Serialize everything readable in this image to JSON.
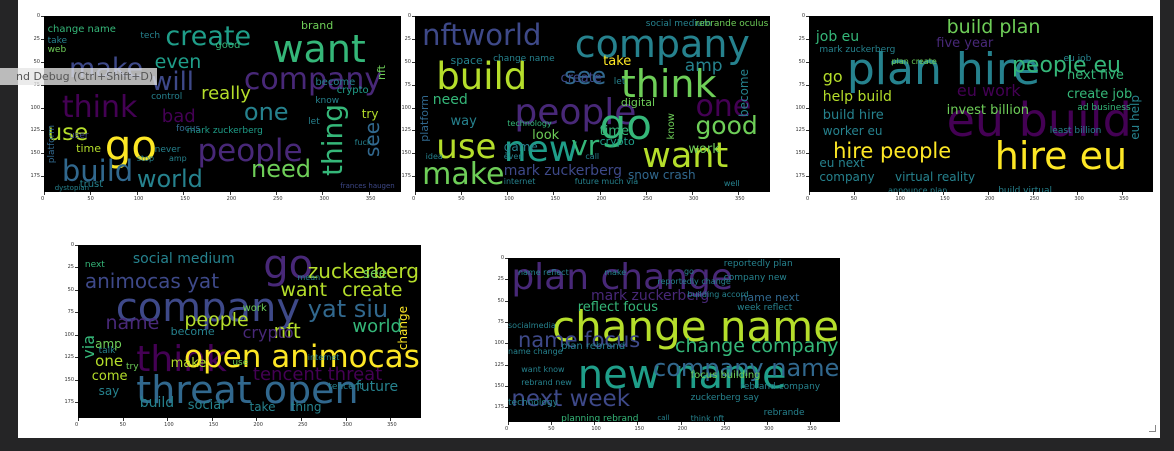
{
  "tooltip": {
    "text": "nd Debug (Ctrl+Shift+D)"
  },
  "palette": {
    "background": "#252526",
    "panel": "#ffffff",
    "canvas": "#000000"
  },
  "wordclouds": [
    {
      "id": "wordcloud-1",
      "x_ticks": [
        "0",
        "50",
        "100",
        "150",
        "200",
        "250",
        "300",
        "350"
      ],
      "y_ticks": [
        "0",
        "25",
        "50",
        "75",
        "100",
        "125",
        "150",
        "175"
      ],
      "words": [
        {
          "text": "go",
          "color": "#fde725"
        },
        {
          "text": "want",
          "color": "#35b779"
        },
        {
          "text": "company",
          "color": "#482878"
        },
        {
          "text": "create",
          "color": "#1f9e89"
        },
        {
          "text": "make",
          "color": "#3e4989"
        },
        {
          "text": "think",
          "color": "#440154"
        },
        {
          "text": "people",
          "color": "#482878"
        },
        {
          "text": "build",
          "color": "#31688e"
        },
        {
          "text": "world",
          "color": "#26828e"
        },
        {
          "text": "need",
          "color": "#6ece58"
        },
        {
          "text": "thing",
          "color": "#35b779"
        },
        {
          "text": "use",
          "color": "#b5de2b"
        },
        {
          "text": "one",
          "color": "#26828e"
        },
        {
          "text": "will",
          "color": "#3e4989"
        },
        {
          "text": "even",
          "color": "#1f9e89"
        },
        {
          "text": "see",
          "color": "#31688e"
        },
        {
          "text": "really",
          "color": "#b5de2b"
        },
        {
          "text": "bad",
          "color": "#440154"
        },
        {
          "text": "change name",
          "color": "#35b779"
        },
        {
          "text": "mark zuckerberg",
          "color": "#1f9e89"
        },
        {
          "text": "brand",
          "color": "#6ece58"
        },
        {
          "text": "tech",
          "color": "#26828e"
        },
        {
          "text": "good",
          "color": "#35b779"
        },
        {
          "text": "become",
          "color": "#26828e"
        },
        {
          "text": "crypto",
          "color": "#1f9e89"
        },
        {
          "text": "know",
          "color": "#26828e"
        },
        {
          "text": "focus",
          "color": "#31688e"
        },
        {
          "text": "let",
          "color": "#26828e"
        },
        {
          "text": "try",
          "color": "#b5de2b"
        },
        {
          "text": "time",
          "color": "#b5de2b"
        },
        {
          "text": "never",
          "color": "#26828e"
        },
        {
          "text": "trust",
          "color": "#26828e"
        },
        {
          "text": "platform",
          "color": "#31688e"
        },
        {
          "text": "web",
          "color": "#6ece58"
        },
        {
          "text": "take",
          "color": "#26828e"
        },
        {
          "text": "user",
          "color": "#3e4989"
        },
        {
          "text": "stop",
          "color": "#26828e"
        },
        {
          "text": "dystopian",
          "color": "#26828e"
        },
        {
          "text": "control",
          "color": "#26828e"
        },
        {
          "text": "nft",
          "color": "#6ece58"
        },
        {
          "text": "amp",
          "color": "#26828e"
        },
        {
          "text": "fuck",
          "color": "#26828e"
        },
        {
          "text": "frances haugen",
          "color": "#3e4989"
        }
      ]
    },
    {
      "id": "wordcloud-2",
      "x_ticks": [
        "0",
        "50",
        "100",
        "150",
        "200",
        "250",
        "300",
        "350"
      ],
      "y_ticks": [
        "0",
        "25",
        "50",
        "75",
        "100",
        "125",
        "150",
        "175"
      ],
      "words": [
        {
          "text": "company",
          "color": "#26828e"
        },
        {
          "text": "nftworld",
          "color": "#3e4989"
        },
        {
          "text": "build",
          "color": "#b5de2b"
        },
        {
          "text": "think",
          "color": "#6ece58"
        },
        {
          "text": "people",
          "color": "#482878"
        },
        {
          "text": "see",
          "color": "#31688e"
        },
        {
          "text": "go",
          "color": "#35b779"
        },
        {
          "text": "new",
          "color": "#1f9e89"
        },
        {
          "text": "use",
          "color": "#b5de2b"
        },
        {
          "text": "make",
          "color": "#6ece58"
        },
        {
          "text": "vr",
          "color": "#35b779"
        },
        {
          "text": "want",
          "color": "#b5de2b"
        },
        {
          "text": "good",
          "color": "#6ece58"
        },
        {
          "text": "one",
          "color": "#440154"
        },
        {
          "text": "amp",
          "color": "#26828e"
        },
        {
          "text": "take",
          "color": "#fde725"
        },
        {
          "text": "create",
          "color": "#3e4989"
        },
        {
          "text": "space",
          "color": "#26828e"
        },
        {
          "text": "change name",
          "color": "#26828e"
        },
        {
          "text": "social medium",
          "color": "#26828e"
        },
        {
          "text": "rebrande oculus",
          "color": "#6ece58"
        },
        {
          "text": "platform",
          "color": "#31688e"
        },
        {
          "text": "need",
          "color": "#35b779"
        },
        {
          "text": "technology",
          "color": "#35b779"
        },
        {
          "text": "game",
          "color": "#26828e"
        },
        {
          "text": "look",
          "color": "#6ece58"
        },
        {
          "text": "time",
          "color": "#35b779"
        },
        {
          "text": "crypto",
          "color": "#1f9e89"
        },
        {
          "text": "work",
          "color": "#6ece58"
        },
        {
          "text": "mark zuckerberg",
          "color": "#3e4989"
        },
        {
          "text": "snow crash",
          "color": "#31688e"
        },
        {
          "text": "internet",
          "color": "#26828e"
        },
        {
          "text": "future much via",
          "color": "#26828e"
        },
        {
          "text": "way",
          "color": "#26828e"
        },
        {
          "text": "digital",
          "color": "#6ece58"
        },
        {
          "text": "become",
          "color": "#26828e"
        },
        {
          "text": "know",
          "color": "#6ece58"
        },
        {
          "text": "let",
          "color": "#26828e"
        },
        {
          "text": "well",
          "color": "#26828e"
        },
        {
          "text": "even",
          "color": "#26828e"
        },
        {
          "text": "call",
          "color": "#26828e"
        },
        {
          "text": "idea",
          "color": "#26828e"
        }
      ]
    },
    {
      "id": "wordcloud-3",
      "x_ticks": [
        "0",
        "50",
        "100",
        "150",
        "200",
        "250",
        "300",
        "350"
      ],
      "y_ticks": [
        "0",
        "25",
        "50",
        "75",
        "100",
        "125",
        "150",
        "175"
      ],
      "words": [
        {
          "text": "plan hire",
          "color": "#26828e"
        },
        {
          "text": "eu build",
          "color": "#440154"
        },
        {
          "text": "hire eu",
          "color": "#fde725"
        },
        {
          "text": "hire people",
          "color": "#fde725"
        },
        {
          "text": "people eu",
          "color": "#35b779"
        },
        {
          "text": "job eu",
          "color": "#35b779"
        },
        {
          "text": "build plan",
          "color": "#6ece58"
        },
        {
          "text": "help build",
          "color": "#b5de2b"
        },
        {
          "text": "build hire",
          "color": "#26828e"
        },
        {
          "text": "worker eu",
          "color": "#26828e"
        },
        {
          "text": "eu work",
          "color": "#440154"
        },
        {
          "text": "five year",
          "color": "#482878"
        },
        {
          "text": "next five",
          "color": "#35b779"
        },
        {
          "text": "invest billion",
          "color": "#6ece58"
        },
        {
          "text": "create job",
          "color": "#35b779"
        },
        {
          "text": "mark zuckerberg",
          "color": "#26828e"
        },
        {
          "text": "plan create",
          "color": "#6ece58"
        },
        {
          "text": "virtual reality",
          "color": "#26828e"
        },
        {
          "text": "company",
          "color": "#26828e"
        },
        {
          "text": "eu next",
          "color": "#26828e"
        },
        {
          "text": "go",
          "color": "#b5de2b"
        },
        {
          "text": "eu help",
          "color": "#26828e"
        },
        {
          "text": "ad business",
          "color": "#35b779"
        },
        {
          "text": "announce plan",
          "color": "#26828e"
        },
        {
          "text": "build virtual",
          "color": "#26828e"
        },
        {
          "text": "eu job",
          "color": "#26828e"
        },
        {
          "text": "least billion",
          "color": "#26828e"
        }
      ]
    },
    {
      "id": "wordcloud-4",
      "x_ticks": [
        "0",
        "50",
        "100",
        "150",
        "200",
        "250",
        "300",
        "350"
      ],
      "y_ticks": [
        "0",
        "25",
        "50",
        "75",
        "100",
        "125",
        "150",
        "175"
      ],
      "words": [
        {
          "text": "company",
          "color": "#3e4989"
        },
        {
          "text": "go",
          "color": "#482878"
        },
        {
          "text": "think",
          "color": "#440154"
        },
        {
          "text": "threat open",
          "color": "#31688e"
        },
        {
          "text": "open animocas",
          "color": "#fde725"
        },
        {
          "text": "animocas yat",
          "color": "#3e4989"
        },
        {
          "text": "zuckerberg",
          "color": "#b5de2b"
        },
        {
          "text": "yat siu",
          "color": "#31688e"
        },
        {
          "text": "want",
          "color": "#b5de2b"
        },
        {
          "text": "create",
          "color": "#b5de2b"
        },
        {
          "text": "see",
          "color": "#6ece58"
        },
        {
          "text": "people",
          "color": "#b5de2b"
        },
        {
          "text": "nft",
          "color": "#b5de2b"
        },
        {
          "text": "world",
          "color": "#35b779"
        },
        {
          "text": "tencent threat",
          "color": "#440154"
        },
        {
          "text": "social medium",
          "color": "#26828e"
        },
        {
          "text": "name",
          "color": "#482878"
        },
        {
          "text": "crypto",
          "color": "#482878"
        },
        {
          "text": "become",
          "color": "#26828e"
        },
        {
          "text": "make",
          "color": "#b5de2b"
        },
        {
          "text": "come",
          "color": "#b5de2b"
        },
        {
          "text": "one",
          "color": "#b5de2b"
        },
        {
          "text": "build",
          "color": "#26828e"
        },
        {
          "text": "social",
          "color": "#26828e"
        },
        {
          "text": "take",
          "color": "#26828e"
        },
        {
          "text": "thing",
          "color": "#26828e"
        },
        {
          "text": "future",
          "color": "#26828e"
        },
        {
          "text": "change",
          "color": "#fde725"
        },
        {
          "text": "via",
          "color": "#35b779"
        },
        {
          "text": "say",
          "color": "#26828e"
        },
        {
          "text": "amp",
          "color": "#6ece58"
        },
        {
          "text": "work",
          "color": "#6ece58"
        },
        {
          "text": "next",
          "color": "#35b779"
        },
        {
          "text": "use",
          "color": "#6ece58"
        },
        {
          "text": "tencent",
          "color": "#26828e"
        },
        {
          "text": "try",
          "color": "#6ece58"
        },
        {
          "text": "talk",
          "color": "#26828e"
        },
        {
          "text": "internet",
          "color": "#26828e"
        },
        {
          "text": "mean",
          "color": "#26828e"
        }
      ]
    },
    {
      "id": "wordcloud-5",
      "x_ticks": [
        "0",
        "50",
        "100",
        "150",
        "200",
        "250",
        "300",
        "350"
      ],
      "y_ticks": [
        "0",
        "25",
        "50",
        "75",
        "100",
        "125",
        "150",
        "175"
      ],
      "words": [
        {
          "text": "change name",
          "color": "#b5de2b"
        },
        {
          "text": "plan change",
          "color": "#482878"
        },
        {
          "text": "new name",
          "color": "#1f9e89"
        },
        {
          "text": "name focus",
          "color": "#3e4989"
        },
        {
          "text": "change company",
          "color": "#35b779"
        },
        {
          "text": "company name",
          "color": "#31688e"
        },
        {
          "text": "next week",
          "color": "#3e4989"
        },
        {
          "text": "mark zuckerberg",
          "color": "#482878"
        },
        {
          "text": "reflect focus",
          "color": "#35b779"
        },
        {
          "text": "reportedly plan",
          "color": "#26828e"
        },
        {
          "text": "company new",
          "color": "#26828e"
        },
        {
          "text": "name next",
          "color": "#31688e"
        },
        {
          "text": "week reflect",
          "color": "#26828e"
        },
        {
          "text": "focus building",
          "color": "#6ece58"
        },
        {
          "text": "rebrand company",
          "color": "#26828e"
        },
        {
          "text": "planning rebrand",
          "color": "#35b779"
        },
        {
          "text": "name reflect",
          "color": "#26828e"
        },
        {
          "text": "name change",
          "color": "#26828e"
        },
        {
          "text": "plan rebrand",
          "color": "#26828e"
        },
        {
          "text": "want know",
          "color": "#26828e"
        },
        {
          "text": "rebrand new",
          "color": "#26828e"
        },
        {
          "text": "technology",
          "color": "#26828e"
        },
        {
          "text": "reportedly change",
          "color": "#26828e"
        },
        {
          "text": "building accord",
          "color": "#26828e"
        },
        {
          "text": "zuckerberg say",
          "color": "#26828e"
        },
        {
          "text": "think nft",
          "color": "#26828e"
        },
        {
          "text": "rebrande",
          "color": "#26828e"
        },
        {
          "text": "socialmedia",
          "color": "#26828e"
        },
        {
          "text": "make",
          "color": "#26828e"
        },
        {
          "text": "call",
          "color": "#26828e"
        },
        {
          "text": "go",
          "color": "#26828e"
        }
      ]
    }
  ]
}
